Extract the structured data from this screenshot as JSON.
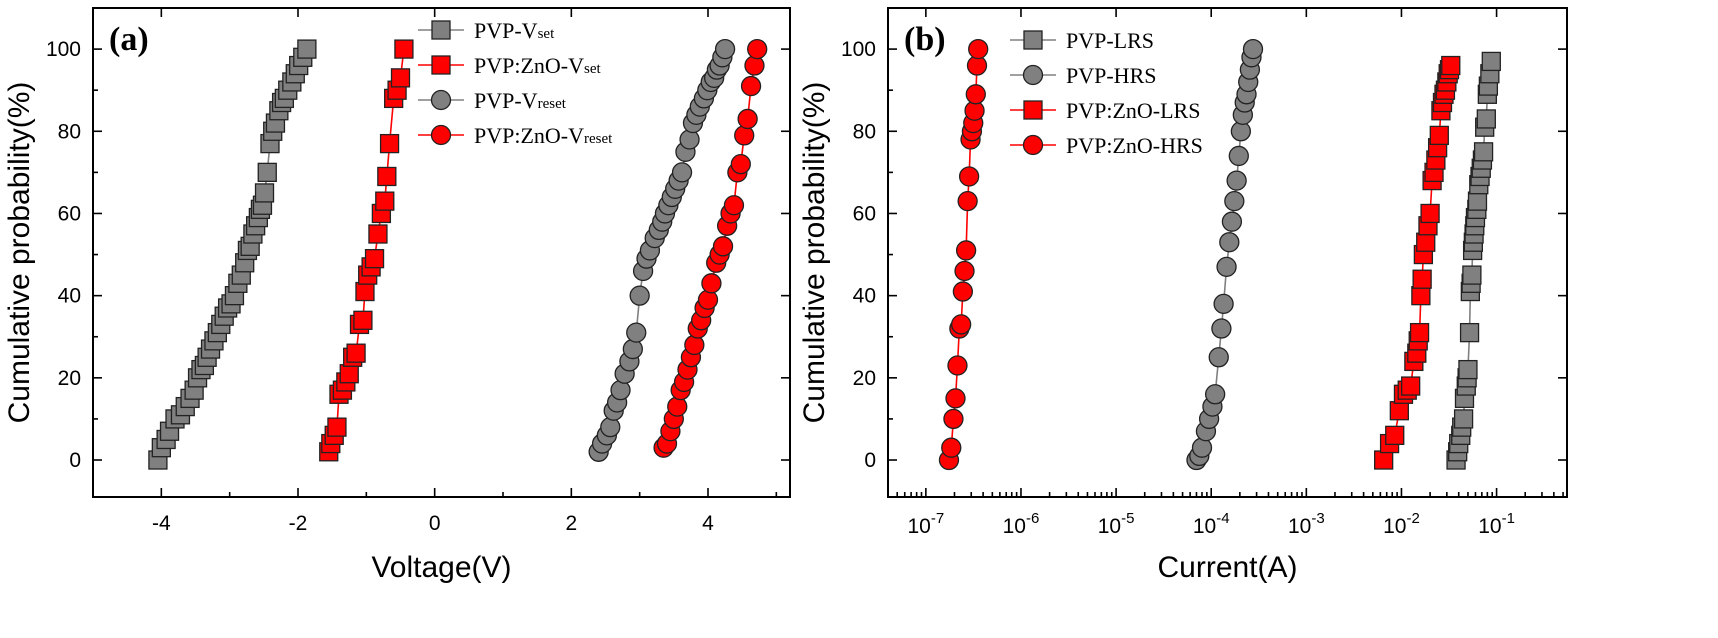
{
  "chart_data": [
    {
      "type": "scatter",
      "panel_label": "(a)",
      "xlabel": "Voltage(V)",
      "ylabel": "Cumulative probability(%)",
      "xlim": [
        -5,
        5.2
      ],
      "ylim": [
        -9,
        110
      ],
      "xticks": [
        -4,
        -2,
        0,
        2,
        4
      ],
      "xtick_labels": [
        "-4",
        "-2",
        "0",
        "2",
        "4"
      ],
      "yticks": [
        0,
        20,
        40,
        60,
        80,
        100
      ],
      "ytick_labels": [
        "0",
        "20",
        "40",
        "60",
        "80",
        "100"
      ],
      "legend_position": "top-right",
      "series": [
        {
          "name": "PVP-V",
          "name_sub": "set",
          "marker": "square",
          "color": "#808080",
          "x": [
            -4.05,
            -4.0,
            -3.93,
            -3.88,
            -3.8,
            -3.72,
            -3.65,
            -3.58,
            -3.52,
            -3.47,
            -3.42,
            -3.37,
            -3.33,
            -3.28,
            -3.23,
            -3.18,
            -3.13,
            -3.08,
            -3.03,
            -2.98,
            -2.93,
            -2.88,
            -2.83,
            -2.78,
            -2.74,
            -2.7,
            -2.66,
            -2.62,
            -2.58,
            -2.55,
            -2.52,
            -2.49,
            -2.45,
            -2.41,
            -2.37,
            -2.33,
            -2.28,
            -2.24,
            -2.2,
            -2.15,
            -2.09,
            -2.04,
            -1.99,
            -1.93,
            -1.87
          ],
          "y": [
            0,
            3,
            5,
            7,
            10,
            11,
            13,
            15,
            17,
            20,
            22,
            23,
            25,
            27,
            29,
            31,
            33,
            35,
            37,
            38,
            40,
            43,
            45,
            48,
            51,
            52,
            55,
            57,
            59,
            61,
            62,
            65,
            70,
            77,
            80,
            82,
            85,
            87,
            88,
            90,
            92,
            94,
            96,
            98,
            100
          ]
        },
        {
          "name": "PVP:ZnO-V",
          "name_sub": "set",
          "marker": "square",
          "color": "#ff0000",
          "x": [
            -1.55,
            -1.52,
            -1.47,
            -1.43,
            -1.4,
            -1.35,
            -1.3,
            -1.25,
            -1.2,
            -1.15,
            -1.1,
            -1.05,
            -1.02,
            -0.98,
            -0.93,
            -0.88,
            -0.83,
            -0.78,
            -0.73,
            -0.7,
            -0.66,
            -0.6,
            -0.55,
            -0.5,
            -0.45
          ],
          "y": [
            2,
            4,
            6,
            8,
            16,
            17,
            19,
            21,
            25,
            26,
            33,
            34,
            41,
            45,
            47,
            49,
            55,
            60,
            63,
            69,
            77,
            88,
            90,
            93,
            100
          ]
        },
        {
          "name": "PVP-V",
          "name_sub": "reset",
          "marker": "circle",
          "color": "#808080",
          "x": [
            2.4,
            2.45,
            2.52,
            2.57,
            2.62,
            2.67,
            2.72,
            2.78,
            2.85,
            2.9,
            2.95,
            3.0,
            3.05,
            3.1,
            3.15,
            3.22,
            3.28,
            3.33,
            3.37,
            3.42,
            3.47,
            3.52,
            3.57,
            3.62,
            3.67,
            3.73,
            3.78,
            3.83,
            3.88,
            3.94,
            3.99,
            4.04,
            4.09,
            4.13,
            4.17,
            4.21,
            4.25
          ],
          "y": [
            2,
            4,
            6,
            8,
            12,
            14,
            17,
            21,
            24,
            27,
            31,
            40,
            46,
            49,
            51,
            54,
            56,
            58,
            60,
            62,
            64,
            66,
            68,
            70,
            75,
            78,
            82,
            84,
            86,
            88,
            90,
            92,
            93,
            95,
            96,
            98,
            100
          ]
        },
        {
          "name": "PVP:ZnO-V",
          "name_sub": "reset",
          "marker": "circle",
          "color": "#ff0000",
          "x": [
            3.35,
            3.4,
            3.45,
            3.5,
            3.55,
            3.6,
            3.65,
            3.7,
            3.75,
            3.8,
            3.85,
            3.9,
            3.95,
            4.0,
            4.05,
            4.12,
            4.17,
            4.22,
            4.28,
            4.33,
            4.38,
            4.43,
            4.48,
            4.53,
            4.58,
            4.63,
            4.68,
            4.72
          ],
          "y": [
            3,
            4,
            7,
            10,
            13,
            17,
            19,
            22,
            25,
            28,
            32,
            34,
            37,
            39,
            43,
            48,
            50,
            52,
            57,
            60,
            62,
            70,
            72,
            79,
            83,
            91,
            96,
            100
          ]
        }
      ]
    },
    {
      "type": "scatter",
      "panel_label": "(b)",
      "xlabel": "Current(A)",
      "ylabel": "Cumulative probability(%)",
      "xscale": "log",
      "xlim": [
        4e-08,
        0.55
      ],
      "ylim": [
        -9,
        110
      ],
      "xticks": [
        1e-07,
        1e-06,
        1e-05,
        0.0001,
        0.001,
        0.01,
        0.1
      ],
      "xtick_base": "10",
      "xtick_exponents": [
        "-7",
        "-6",
        "-5",
        "-4",
        "-3",
        "-2",
        "-1"
      ],
      "yticks": [
        0,
        20,
        40,
        60,
        80,
        100
      ],
      "ytick_labels": [
        "0",
        "20",
        "40",
        "60",
        "80",
        "100"
      ],
      "legend_position": "top-left",
      "series": [
        {
          "name": "PVP-LRS",
          "marker": "square",
          "color": "#808080",
          "x": [
            0.0375,
            0.039,
            0.04,
            0.042,
            0.043,
            0.045,
            0.046,
            0.048,
            0.049,
            0.05,
            0.052,
            0.053,
            0.054,
            0.055,
            0.056,
            0.057,
            0.058,
            0.059,
            0.06,
            0.062,
            0.063,
            0.065,
            0.067,
            0.069,
            0.071,
            0.073,
            0.075,
            0.078,
            0.08,
            0.082,
            0.085,
            0.088
          ],
          "y": [
            0,
            2,
            4,
            6,
            8,
            10,
            15,
            18,
            20,
            22,
            31,
            41,
            43,
            45,
            51,
            53,
            55,
            57,
            59,
            61,
            63,
            67,
            69,
            71,
            73,
            75,
            81,
            83,
            89,
            91,
            94,
            97
          ]
        },
        {
          "name": "PVP-HRS",
          "marker": "circle",
          "color": "#808080",
          "x": [
            7e-05,
            7.5e-05,
            8e-05,
            8.8e-05,
            9.5e-05,
            0.000103,
            0.00011,
            0.00012,
            0.000128,
            0.000135,
            0.000145,
            0.000155,
            0.000165,
            0.000175,
            0.000185,
            0.000195,
            0.000205,
            0.000215,
            0.000225,
            0.000235,
            0.000245,
            0.000255,
            0.000265,
            0.000275
          ],
          "y": [
            0,
            1,
            3,
            7,
            10,
            13,
            16,
            25,
            32,
            38,
            47,
            53,
            58,
            63,
            68,
            74,
            80,
            84,
            87,
            89,
            92,
            95,
            98,
            100
          ]
        },
        {
          "name": "PVP:ZnO-LRS",
          "marker": "square",
          "color": "#ff0000",
          "x": [
            0.0065,
            0.0075,
            0.0085,
            0.0095,
            0.0105,
            0.0115,
            0.0125,
            0.0135,
            0.0145,
            0.015,
            0.0155,
            0.016,
            0.0165,
            0.017,
            0.018,
            0.019,
            0.02,
            0.021,
            0.022,
            0.023,
            0.024,
            0.025,
            0.026,
            0.027,
            0.028,
            0.029,
            0.03,
            0.031,
            0.032,
            0.033
          ],
          "y": [
            0,
            4,
            6,
            12,
            16,
            17,
            18,
            24,
            26,
            29,
            31,
            40,
            44,
            50,
            53,
            57,
            60,
            68,
            70,
            73,
            76,
            79,
            85,
            87,
            89,
            90,
            92,
            94,
            95,
            96
          ]
        },
        {
          "name": "PVP:ZnO-HRS",
          "marker": "circle",
          "color": "#ff0000",
          "x": [
            1.75e-07,
            1.85e-07,
            1.95e-07,
            2.05e-07,
            2.15e-07,
            2.25e-07,
            2.35e-07,
            2.45e-07,
            2.55e-07,
            2.65e-07,
            2.75e-07,
            2.85e-07,
            2.95e-07,
            3.05e-07,
            3.15e-07,
            3.25e-07,
            3.35e-07,
            3.45e-07,
            3.55e-07
          ],
          "y": [
            0,
            3,
            10,
            15,
            23,
            32,
            33,
            41,
            46,
            51,
            63,
            69,
            78,
            80,
            82,
            85,
            89,
            96,
            100
          ]
        }
      ]
    }
  ]
}
